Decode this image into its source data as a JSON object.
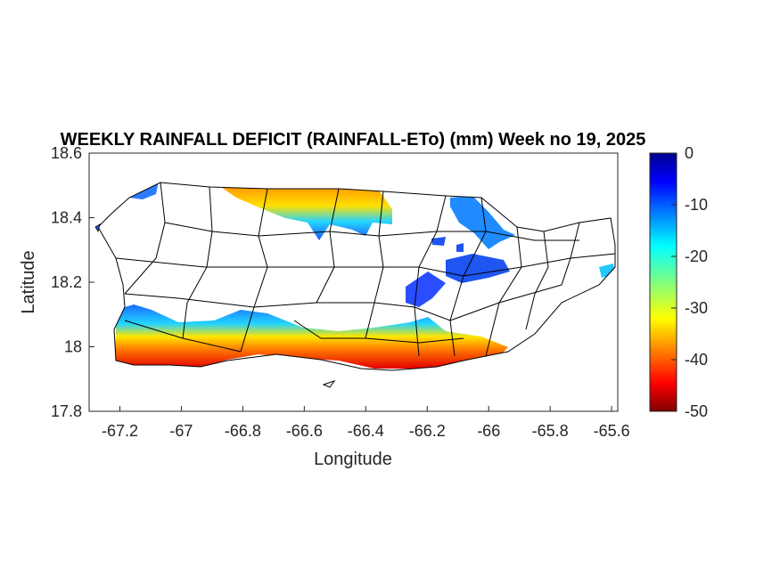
{
  "map": {
    "title": "WEEKLY RAINFALL DEFICIT (RAINFALL-ETo) (mm) Week no 19, 2025",
    "xlabel": "Longitude",
    "ylabel": "Latitude",
    "xlim": [
      -67.3,
      -65.58
    ],
    "ylim": [
      17.8,
      18.6
    ],
    "xticks": [
      -67.2,
      -67,
      -66.8,
      -66.6,
      -66.4,
      -66.2,
      -66,
      -65.8,
      -65.6
    ],
    "yticks": [
      17.8,
      18,
      18.2,
      18.4,
      18.6
    ],
    "colorbar": {
      "ticks": [
        0,
        -10,
        -20,
        -30,
        -40,
        -50
      ],
      "range": [
        -50,
        0
      ],
      "colormap": "jet",
      "low_color": "#800000",
      "high_color": "#00008f"
    },
    "deficit_zones": [
      {
        "region": "north-coast",
        "color": "#2a6bff"
      },
      {
        "region": "south-coast",
        "color": "#ff3b0f"
      },
      {
        "region": "east-central",
        "color": "#1f55f0"
      },
      {
        "region": "northeast",
        "color": "#1f8bff"
      }
    ]
  }
}
